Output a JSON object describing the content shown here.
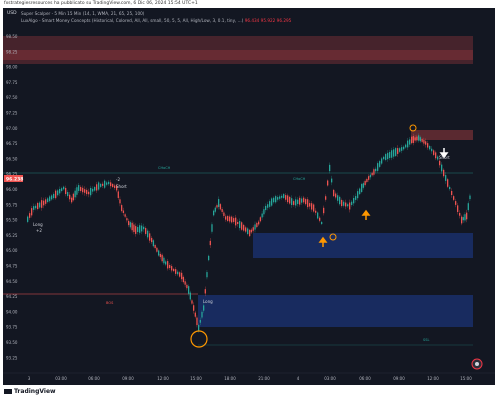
{
  "header": {
    "caption": "fxstrategiesresources ha pubblicato su TradingView.com, 6 Dic 06, 2024 15:54 UTC+1"
  },
  "chart": {
    "symbol": "USD",
    "indicator_1": "Super Scalper - 5 Min 15 Min (14, 1, WMA, 21, 65, 25, 100)",
    "indicator_2": "LuxAlgo - Smart Money Concepts (Historical, Colored, All, All, small, 50, 5, 5, All, High/Low, 3, 0.1, tiny, ...)",
    "indicator_2_values": "96.434  95.922  96.295",
    "price_labels": [
      "98.50",
      "98.25",
      "98.00",
      "97.75",
      "97.50",
      "97.25",
      "97.00",
      "96.75",
      "96.50",
      "96.25",
      "96.00",
      "95.75",
      "95.50",
      "95.25",
      "95.00",
      "94.75",
      "94.50",
      "94.25",
      "94.00",
      "93.75",
      "93.50",
      "93.25"
    ],
    "current_price": "96.238",
    "time_labels": [
      "3",
      "03:00",
      "06:00",
      "09:00",
      "12:00",
      "15:00",
      "18:00",
      "21:00",
      "4",
      "03:00",
      "06:00",
      "09:00",
      "12:00",
      "15:00"
    ],
    "annotations": {
      "short_1": "Short",
      "short_2": "Short",
      "long_1": "Long",
      "long_2": "Long",
      "choch_1": "CHoCH",
      "choch_2": "CHoCH",
      "bos": "BOS",
      "ssl": "SSL",
      "val_1": "+2",
      "val_2": "-2"
    },
    "colors": {
      "bull": "#26a69a",
      "bear": "#ef5350",
      "supply_zone": "#ff5252",
      "demand_zone": "#2962ff",
      "signal_up": "#ff9800",
      "signal_short": "#ffffff",
      "background": "#131722"
    }
  },
  "footer": {
    "brand": "TradingView"
  }
}
